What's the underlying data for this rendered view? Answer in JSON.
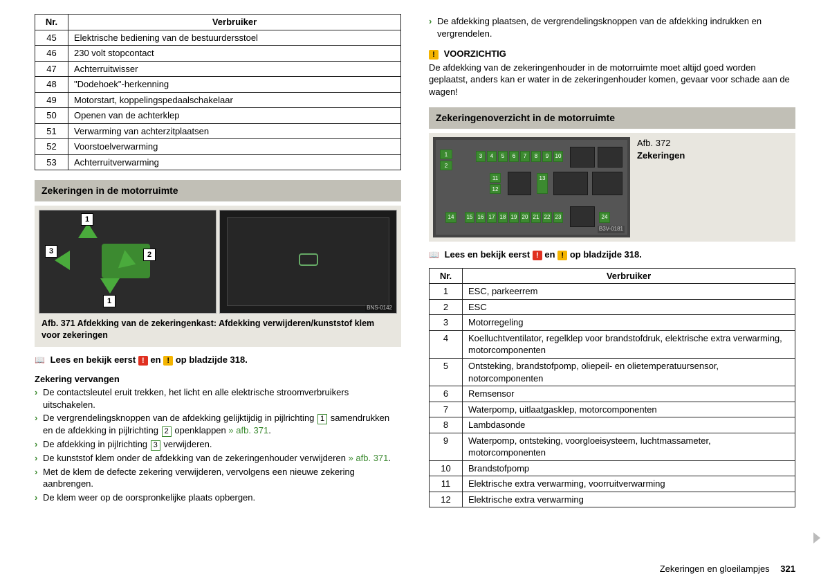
{
  "footer": {
    "section": "Zekeringen en gloeilampjes",
    "page": "321"
  },
  "readline": {
    "prefix": "Lees en bekijk eerst",
    "and": "en",
    "suffix": "op bladzijde 318."
  },
  "left": {
    "table1": {
      "head_nr": "Nr.",
      "head_cons": "Verbruiker",
      "rows": [
        {
          "nr": "45",
          "txt": "Elektrische bediening van de bestuurdersstoel"
        },
        {
          "nr": "46",
          "txt": "230 volt stopcontact"
        },
        {
          "nr": "47",
          "txt": "Achterruitwisser"
        },
        {
          "nr": "48",
          "txt": "\"Dodehoek\"-herkenning"
        },
        {
          "nr": "49",
          "txt": "Motorstart, koppelingspedaalschakelaar"
        },
        {
          "nr": "50",
          "txt": "Openen van de achterklep"
        },
        {
          "nr": "51",
          "txt": "Verwarming van achterzitplaatsen"
        },
        {
          "nr": "52",
          "txt": "Voorstoelverwarming"
        },
        {
          "nr": "53",
          "txt": "Achterruitverwarming"
        }
      ]
    },
    "section1_title": "Zekeringen in de motorruimte",
    "fig371": {
      "code_left": "BNS-0142",
      "caption": "Afb. 371  Afdekking van de zekeringenkast: Afdekking verwijderen/kunststof klem voor zekeringen",
      "n1": "1",
      "n2": "2",
      "n3": "3"
    },
    "replace_head": "Zekering vervangen",
    "steps": [
      "De contactsleutel eruit trekken, het licht en alle elektrische stroomverbruikers uitschakelen.",
      "_box1box2",
      "_box3",
      "_klem",
      "Met de klem de defecte zekering verwijderen, vervolgens een nieuwe zekering aanbrengen.",
      "De klem weer op de oorspronkelijke plaats opbergen."
    ],
    "step_box12_a": "De vergrendelingsknoppen van de afdekking gelijktijdig in pijlrichting",
    "step_box12_b": "samendrukken en de afdekking in pijlrichting",
    "step_box12_c": "openklappen",
    "step_box12_ref": "» afb. 371",
    "step_box3_a": "De afdekking in pijlrichting",
    "step_box3_b": "verwijderen.",
    "step_klem_a": "De kunststof klem onder de afdekking van de zekeringenhouder verwijderen",
    "step_klem_ref": "» afb. 371"
  },
  "right": {
    "top_bullet": "De afdekking plaatsen, de vergrendelingsknoppen van de afdekking indrukken en vergrendelen.",
    "caution_title": "VOORZICHTIG",
    "caution_text": "De afdekking van de zekeringenhouder in de motorruimte moet altijd goed worden geplaatst, anders kan er water in de zekeringenhouder komen, gevaar voor schade aan de wagen!",
    "section2_title": "Zekeringenoverzicht in de motorruimte",
    "fig372": {
      "label_a": "Afb. 372",
      "label_b": "Zekeringen",
      "code": "B3V-0181",
      "mini": [
        "1",
        "2",
        "3",
        "4",
        "5",
        "6",
        "7",
        "8",
        "9",
        "10",
        "11",
        "12",
        "13",
        "14",
        "15",
        "16",
        "17",
        "18",
        "19",
        "20",
        "21",
        "22",
        "23",
        "24"
      ]
    },
    "table2": {
      "head_nr": "Nr.",
      "head_cons": "Verbruiker",
      "rows": [
        {
          "nr": "1",
          "txt": "ESC, parkeerrem"
        },
        {
          "nr": "2",
          "txt": "ESC"
        },
        {
          "nr": "3",
          "txt": "Motorregeling"
        },
        {
          "nr": "4",
          "txt": "Koelluchtventilator, regelklep voor brandstofdruk, elektrische extra verwarming, motorcomponenten"
        },
        {
          "nr": "5",
          "txt": "Ontsteking, brandstofpomp, oliepeil- en olietemperatuursensor, notorcomponenten"
        },
        {
          "nr": "6",
          "txt": "Remsensor"
        },
        {
          "nr": "7",
          "txt": "Waterpomp, uitlaatgasklep, motorcomponenten"
        },
        {
          "nr": "8",
          "txt": "Lambdasonde"
        },
        {
          "nr": "9",
          "txt": "Waterpomp, ontsteking, voorgloeisysteem, luchtmassameter, motorcomponenten"
        },
        {
          "nr": "10",
          "txt": "Brandstofpomp"
        },
        {
          "nr": "11",
          "txt": "Elektrische extra verwarming, voorruitverwarming"
        },
        {
          "nr": "12",
          "txt": "Elektrische extra verwarming"
        }
      ]
    }
  }
}
